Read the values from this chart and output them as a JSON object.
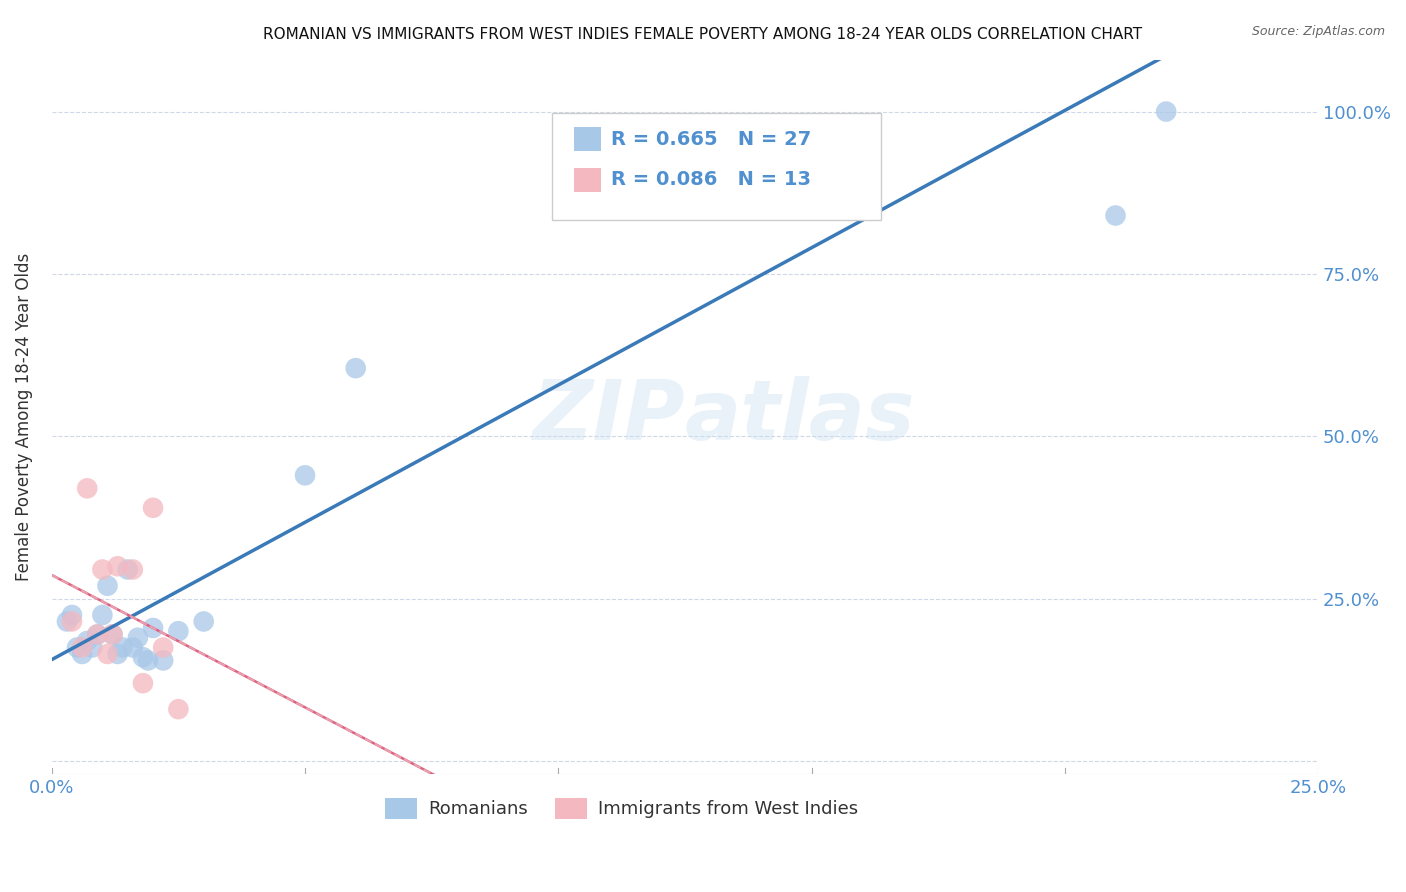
{
  "title": "ROMANIAN VS IMMIGRANTS FROM WEST INDIES FEMALE POVERTY AMONG 18-24 YEAR OLDS CORRELATION CHART",
  "source": "Source: ZipAtlas.com",
  "ylabel_label": "Female Poverty Among 18-24 Year Olds",
  "xlim": [
    0.0,
    0.25
  ],
  "ylim": [
    -0.02,
    1.08
  ],
  "x_ticks": [
    0.0,
    0.05,
    0.1,
    0.15,
    0.2,
    0.25
  ],
  "y_ticks": [
    0.0,
    0.25,
    0.5,
    0.75,
    1.0
  ],
  "legend_r1": "R = 0.665",
  "legend_n1": "N = 27",
  "legend_r2": "R = 0.086",
  "legend_n2": "N = 13",
  "blue_color": "#a8c8e8",
  "pink_color": "#f4b8c0",
  "line_blue": "#3a7ab8",
  "line_pink": "#e06080",
  "line_pink_dashed": "#e8a0b0",
  "romanians_x": [
    0.003,
    0.004,
    0.005,
    0.006,
    0.007,
    0.008,
    0.009,
    0.01,
    0.011,
    0.012,
    0.013,
    0.014,
    0.015,
    0.016,
    0.017,
    0.018,
    0.019,
    0.02,
    0.022,
    0.025,
    0.03,
    0.05,
    0.06,
    0.135,
    0.16,
    0.21,
    0.22
  ],
  "romanians_y": [
    0.215,
    0.225,
    0.175,
    0.165,
    0.185,
    0.175,
    0.195,
    0.225,
    0.27,
    0.195,
    0.165,
    0.175,
    0.295,
    0.175,
    0.19,
    0.16,
    0.155,
    0.205,
    0.155,
    0.2,
    0.215,
    0.44,
    0.605,
    0.975,
    0.975,
    0.84,
    1.0
  ],
  "westindies_x": [
    0.004,
    0.006,
    0.007,
    0.009,
    0.01,
    0.011,
    0.012,
    0.013,
    0.016,
    0.018,
    0.02,
    0.022,
    0.025
  ],
  "westindies_y": [
    0.215,
    0.175,
    0.42,
    0.195,
    0.295,
    0.165,
    0.195,
    0.3,
    0.295,
    0.12,
    0.39,
    0.175,
    0.08
  ],
  "watermark_zip": "ZIP",
  "watermark_atlas": "atlas",
  "background_color": "#ffffff",
  "grid_color": "#d0d8e8",
  "tick_color": "#5090d0"
}
